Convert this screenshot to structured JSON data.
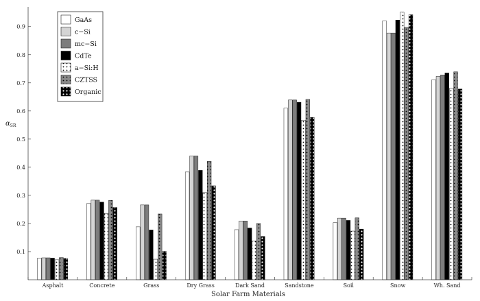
{
  "chart_data": {
    "type": "bar",
    "xlabel": "Solar Farm Materials",
    "ylabel": "α",
    "ylabel_sub": "SR",
    "ylim": [
      0,
      0.97
    ],
    "yticks": [
      "0.1",
      "0.2",
      "0.3",
      "0.4",
      "0.5",
      "0.6",
      "0.7",
      "0.8",
      "0.9"
    ],
    "yticks_values": [
      0.1,
      0.2,
      0.3,
      0.4,
      0.5,
      0.6,
      0.7,
      0.8,
      0.9
    ],
    "legend_position": "top-left",
    "categories": [
      "Asphalt",
      "Concrete",
      "Grass",
      "Dry Grass",
      "Dark Sand",
      "Sandstone",
      "Soil",
      "Snow",
      "Wh. Sand"
    ],
    "series": [
      {
        "name": "GaAs",
        "pattern": "white",
        "values": [
          0.077,
          0.271,
          0.188,
          0.383,
          0.178,
          0.61,
          0.203,
          0.92,
          0.711
        ]
      },
      {
        "name": "c−Si",
        "pattern": "lightgray",
        "values": [
          0.078,
          0.283,
          0.266,
          0.44,
          0.209,
          0.639,
          0.219,
          0.877,
          0.723
        ]
      },
      {
        "name": "mc−Si",
        "pattern": "gray",
        "values": [
          0.078,
          0.283,
          0.266,
          0.44,
          0.209,
          0.639,
          0.219,
          0.877,
          0.728
        ]
      },
      {
        "name": "CdTe",
        "pattern": "black",
        "values": [
          0.077,
          0.276,
          0.177,
          0.389,
          0.184,
          0.631,
          0.211,
          0.923,
          0.735
        ]
      },
      {
        "name": "a−Si:H",
        "pattern": "whitedots",
        "values": [
          0.071,
          0.236,
          0.073,
          0.31,
          0.138,
          0.567,
          0.173,
          0.951,
          0.68
        ]
      },
      {
        "name": "CZTSS",
        "pattern": "graydots",
        "values": [
          0.079,
          0.282,
          0.234,
          0.421,
          0.2,
          0.641,
          0.22,
          0.897,
          0.739
        ]
      },
      {
        "name": "Organic",
        "pattern": "blackdots",
        "values": [
          0.076,
          0.257,
          0.101,
          0.334,
          0.154,
          0.577,
          0.18,
          0.942,
          0.678
        ]
      }
    ]
  }
}
